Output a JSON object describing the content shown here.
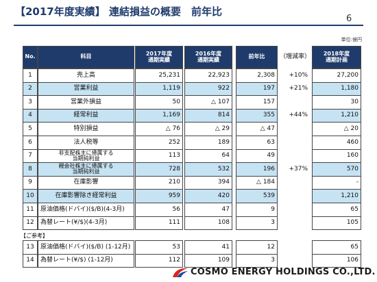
{
  "header": {
    "title": "【2017年度実績】 連結損益の概要　前年比",
    "page": "6",
    "unit": "単位:億円"
  },
  "table": {
    "columns": {
      "no": "No.",
      "item": "科目",
      "fy2017": "2017年度\n通期実績",
      "fy2016": "2016年度\n通期実績",
      "diff": "前年比",
      "rate": "（増減率）",
      "fy2018": "2018年度\n通期計画"
    },
    "rows": [
      {
        "no": "1",
        "item": "売上高",
        "fy2017": "25,231",
        "fy2016": "22,923",
        "diff": "2,308",
        "rate": "+10%",
        "fy2018": "27,200"
      },
      {
        "no": "2",
        "item": "営業利益",
        "fy2017": "1,119",
        "fy2016": "922",
        "diff": "197",
        "rate": "+21%",
        "fy2018": "1,180",
        "highlight": true
      },
      {
        "no": "3",
        "item": "営業外損益",
        "fy2017": "50",
        "fy2016": "△ 107",
        "diff": "157",
        "fy2018": "30"
      },
      {
        "no": "4",
        "item": "経常利益",
        "fy2017": "1,169",
        "fy2016": "814",
        "diff": "355",
        "rate": "+44%",
        "fy2018": "1,210",
        "highlight": true
      },
      {
        "no": "5",
        "item": "特別損益",
        "fy2017": "△ 76",
        "fy2016": "△ 29",
        "diff": "△ 47",
        "fy2018": "△ 20"
      },
      {
        "no": "6",
        "item": "法人税等",
        "fy2017": "252",
        "fy2016": "189",
        "diff": "63",
        "fy2018": "460"
      },
      {
        "no": "7",
        "item": "非支配株主に帰属する\n当期純利益",
        "fy2017": "113",
        "fy2016": "64",
        "diff": "49",
        "fy2018": "160"
      },
      {
        "no": "8",
        "item": "親会社株主に帰属する\n当期純利益",
        "fy2017": "728",
        "fy2016": "532",
        "diff": "196",
        "rate": "+37%",
        "fy2018": "570",
        "highlight": true
      },
      {
        "no": "9",
        "item": "在庫影響",
        "fy2017": "210",
        "fy2016": "394",
        "diff": "△ 184",
        "fy2018": "-"
      },
      {
        "no": "10",
        "item": "在庫影響除き経常利益",
        "fy2017": "959",
        "fy2016": "420",
        "diff": "539",
        "fy2018": "1,210",
        "highlight": true
      },
      {
        "no": "11",
        "item": "原油価格(ドバイ)($/B)(4-3月)",
        "fy2017": "56",
        "fy2016": "47",
        "diff": "9",
        "fy2018": "65",
        "left": true
      },
      {
        "no": "12",
        "item": "為替レート(¥/$)(4-3月)",
        "fy2017": "111",
        "fy2016": "108",
        "diff": "3",
        "fy2018": "105",
        "left": true
      }
    ],
    "reference_label": "【ご参考】",
    "reference_rows": [
      {
        "no": "13",
        "item": "原油価格(ドバイ)($/B) (1-12月)",
        "fy2017": "53",
        "fy2016": "41",
        "diff": "12",
        "fy2018": "65",
        "left": true
      },
      {
        "no": "14",
        "item": "為替レート(¥/$) (1-12月)",
        "fy2017": "112",
        "fy2016": "109",
        "diff": "3",
        "fy2018": "106",
        "left": true
      }
    ]
  },
  "footer": {
    "company": "COSMO ENERGY HOLDINGS CO.,LTD."
  }
}
